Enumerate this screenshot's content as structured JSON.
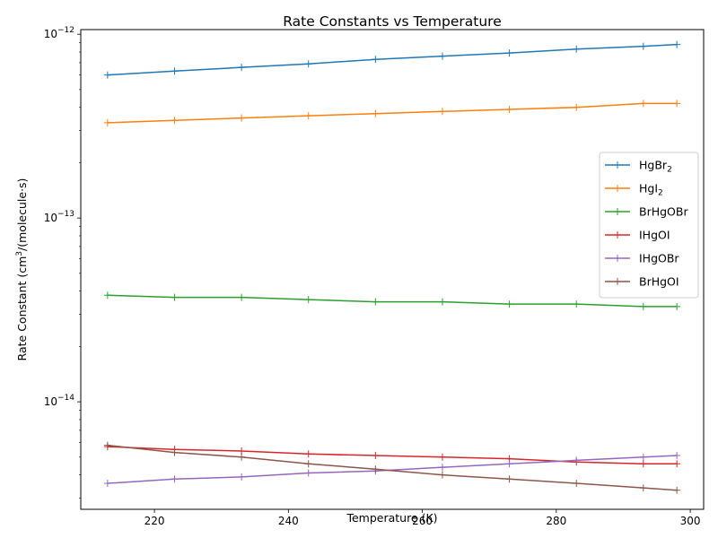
{
  "chart_data": {
    "type": "line",
    "title": "Rate Constants vs Temperature",
    "xlabel": "Temperature (K)",
    "ylabel_parts": [
      "Rate Constant (cm",
      "3",
      "/(molecule·s)"
    ],
    "yscale": "log",
    "xlim": [
      209,
      302
    ],
    "ylim": [
      2.6e-15,
      1.06e-12
    ],
    "x_ticks": [
      220,
      240,
      260,
      280,
      300
    ],
    "y_major_ticks": [
      {
        "value": 1e-14,
        "base": "10",
        "exp": "−14"
      },
      {
        "value": 1e-13,
        "base": "10",
        "exp": "−13"
      },
      {
        "value": 1e-12,
        "base": "10",
        "exp": "−12"
      }
    ],
    "y_minor_ticks": [
      3e-15,
      4e-15,
      5e-15,
      6e-15,
      7e-15,
      8e-15,
      9e-15,
      2e-14,
      3e-14,
      4e-14,
      5e-14,
      6e-14,
      7e-14,
      8e-14,
      9e-14,
      2e-13,
      3e-13,
      4e-13,
      5e-13,
      6e-13,
      7e-13,
      8e-13,
      9e-13
    ],
    "legend_position": "center-right",
    "x": [
      213,
      223,
      233,
      243,
      253,
      263,
      273,
      283,
      293,
      298
    ],
    "series": [
      {
        "name": "HgBr2",
        "label_base": "HgBr",
        "label_sub": "2",
        "color": "#1f77b4",
        "values": [
          6e-13,
          6.3e-13,
          6.6e-13,
          6.9e-13,
          7.3e-13,
          7.6e-13,
          7.9e-13,
          8.3e-13,
          8.6e-13,
          8.8e-13
        ]
      },
      {
        "name": "HgI2",
        "label_base": "HgI",
        "label_sub": "2",
        "color": "#ff7f0e",
        "values": [
          3.3e-13,
          3.4e-13,
          3.5e-13,
          3.6e-13,
          3.7e-13,
          3.8e-13,
          3.9e-13,
          4e-13,
          4.2e-13,
          4.2e-13
        ]
      },
      {
        "name": "BrHgOBr",
        "label_base": "BrHgOBr",
        "label_sub": "",
        "color": "#2ca02c",
        "values": [
          3.8e-14,
          3.7e-14,
          3.7e-14,
          3.6e-14,
          3.5e-14,
          3.5e-14,
          3.4e-14,
          3.4e-14,
          3.3e-14,
          3.3e-14
        ]
      },
      {
        "name": "IHgOI",
        "label_base": "IHgOI",
        "label_sub": "",
        "color": "#d62728",
        "values": [
          5.7e-15,
          5.5e-15,
          5.4e-15,
          5.2e-15,
          5.1e-15,
          5e-15,
          4.9e-15,
          4.7e-15,
          4.6e-15,
          4.6e-15
        ]
      },
      {
        "name": "IHgOBr",
        "label_base": "IHgOBr",
        "label_sub": "",
        "color": "#9467bd",
        "values": [
          3.6e-15,
          3.8e-15,
          3.9e-15,
          4.1e-15,
          4.2e-15,
          4.4e-15,
          4.6e-15,
          4.8e-15,
          5e-15,
          5.1e-15
        ]
      },
      {
        "name": "BrHgOI",
        "label_base": "BrHgOI",
        "label_sub": "",
        "color": "#8c564b",
        "values": [
          5.8e-15,
          5.3e-15,
          5e-15,
          4.6e-15,
          4.3e-15,
          4e-15,
          3.8e-15,
          3.6e-15,
          3.4e-15,
          3.3e-15
        ]
      }
    ]
  }
}
